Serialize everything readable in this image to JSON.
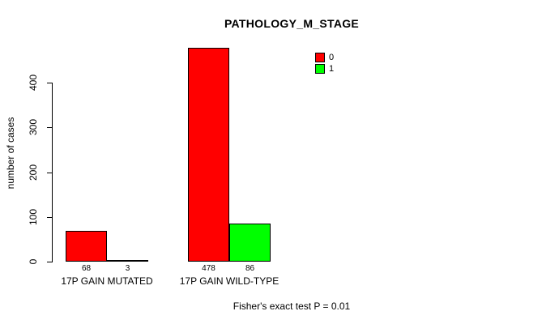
{
  "chart_data": {
    "type": "bar",
    "title": "PATHOLOGY_M_STAGE",
    "xlabel": "",
    "ylabel": "number of cases",
    "ylim": [
      0,
      400
    ],
    "yticks": [
      0,
      100,
      200,
      300,
      400
    ],
    "grid": false,
    "legend_position": "top-right",
    "categories": [
      "17P GAIN MUTATED",
      "17P GAIN WILD-TYPE"
    ],
    "series": [
      {
        "name": "0",
        "color": "#FF0000",
        "values": [
          68,
          478
        ]
      },
      {
        "name": "1",
        "color": "#00FF00",
        "values": [
          3,
          86
        ]
      }
    ],
    "bar_value_labels": [
      [
        "68",
        "478"
      ],
      [
        "3",
        "86"
      ]
    ],
    "annotation": "Fisher's exact test P = 0.01"
  },
  "colors": {
    "background": "#FFFFFF",
    "axis": "#000000",
    "text": "#000000",
    "series0": "#FF0000",
    "series1": "#00FF00"
  }
}
